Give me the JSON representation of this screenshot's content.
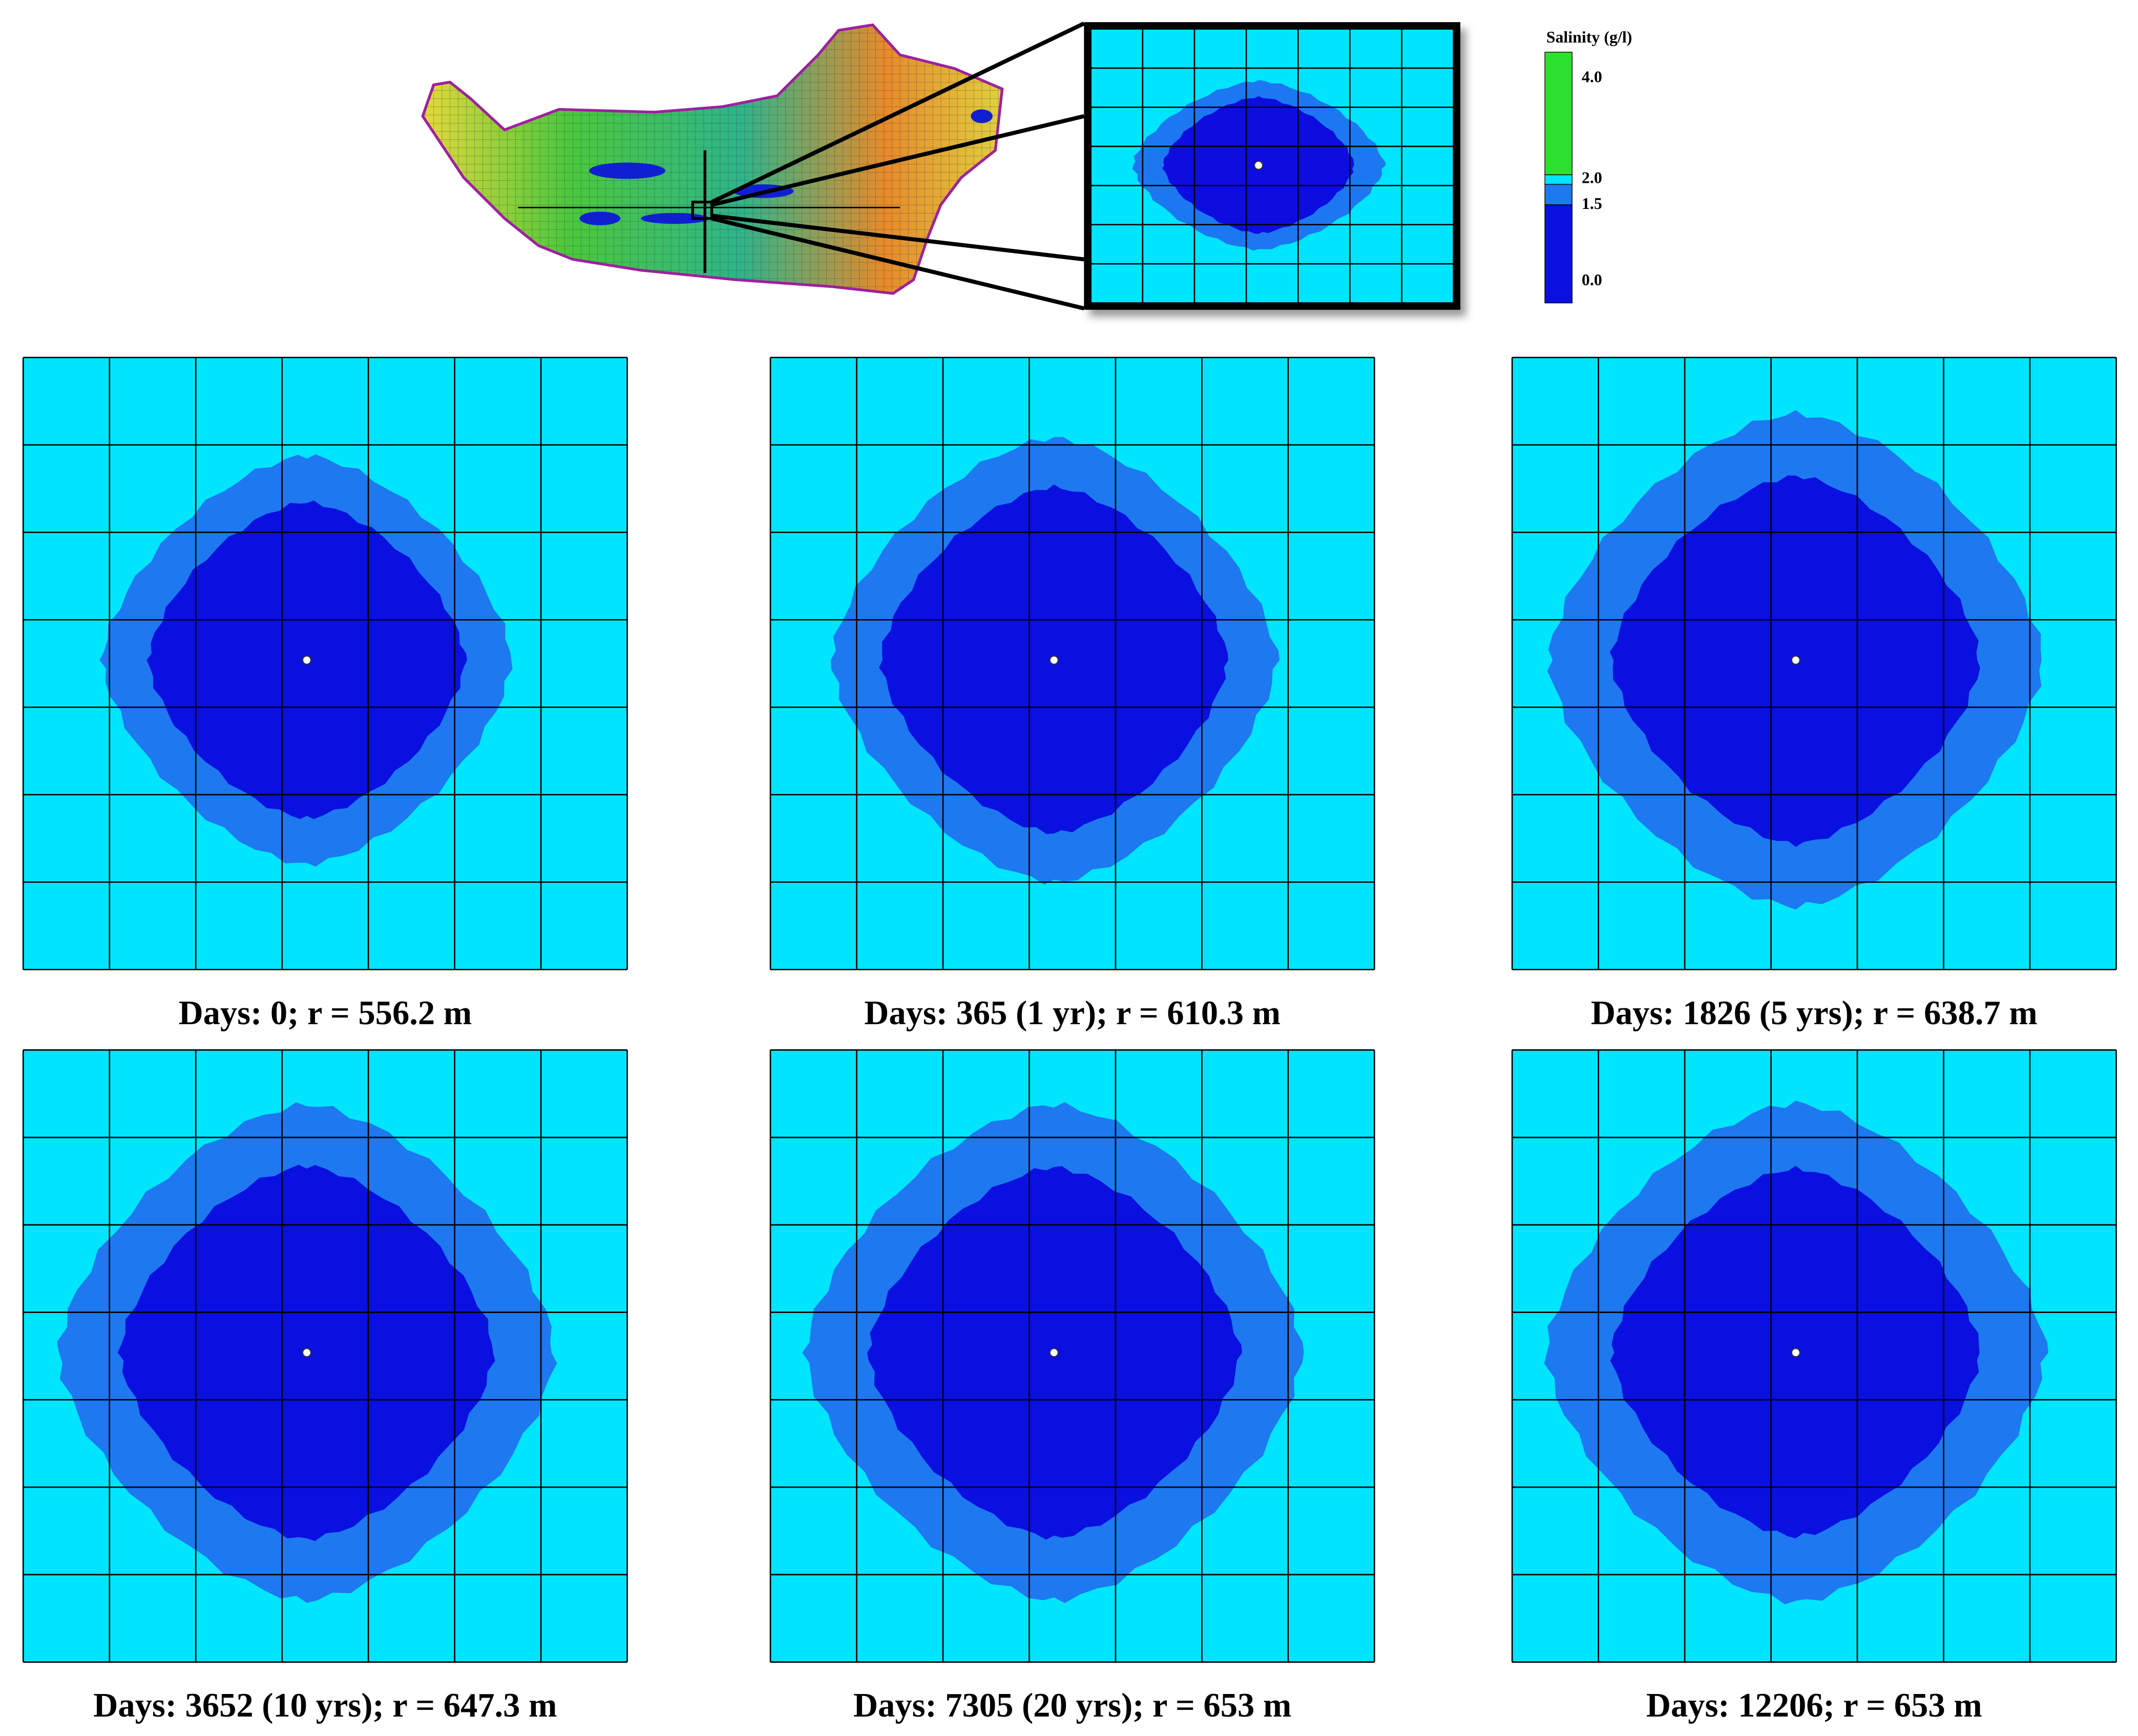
{
  "legend": {
    "title": "Salinity (g/l)",
    "labels": [
      "4.0",
      "2.0",
      "1.5",
      "0.0"
    ]
  },
  "panels": [
    {
      "caption": "Days: 0; r = 556.2 m"
    },
    {
      "caption": "Days: 365 (1 yr); r = 610.3 m"
    },
    {
      "caption": "Days: 1826 (5 yrs); r = 638.7 m"
    },
    {
      "caption": "Days: 3652 (10 yrs); r = 647.3 m"
    },
    {
      "caption": "Days: 7305 (20 yrs); r = 653 m"
    },
    {
      "caption": "Days: 12206; r = 653 m"
    }
  ]
}
